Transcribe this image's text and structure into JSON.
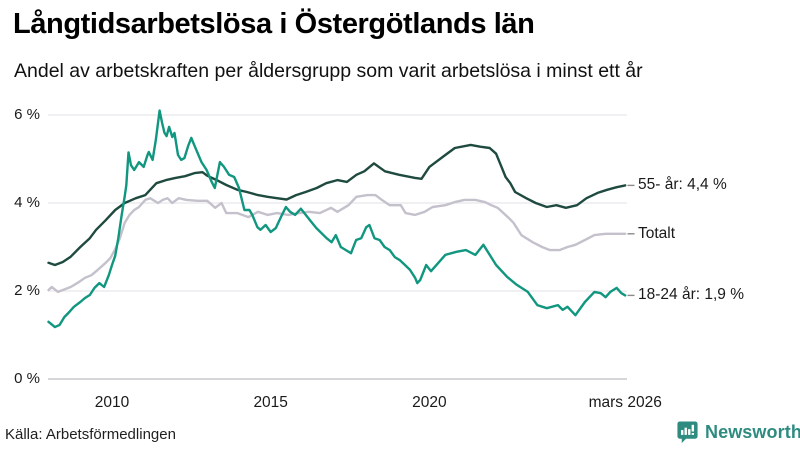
{
  "chart_data": {
    "type": "line",
    "title": "Långtidsarbetslösa i Östergötlands län",
    "subtitle": "Andel av arbetskraften per åldersgrupp som varit arbetslösa i minst ett år",
    "source": "Källa: Arbetsförmedlingen",
    "xlabel": "",
    "ylabel": "",
    "ylim": [
      0,
      6.5
    ],
    "xlim": [
      2008.0,
      2026.25
    ],
    "grid": true,
    "legend_position": "line-end-labels-right",
    "colors": {
      "grid_line": "#e7e6ec",
      "zero_line": "#c9c8ce",
      "label_dash": "#8b8b8b",
      "text": "#1a1a1a"
    },
    "y_ticks": [
      {
        "label": "0 %",
        "value": 0
      },
      {
        "label": "2 %",
        "value": 2
      },
      {
        "label": "4 %",
        "value": 4
      },
      {
        "label": "6 %",
        "value": 6
      }
    ],
    "x_ticks": [
      {
        "label": "2010",
        "year": 2010
      },
      {
        "label": "2015",
        "year": 2015
      },
      {
        "label": "2020",
        "year": 2020
      },
      {
        "label": "mars 2026",
        "year": 2026.17
      }
    ],
    "series": [
      {
        "name": "55- år",
        "label": "55- år: 4,4 %",
        "last_value": "4,4 %",
        "color": "#1f4a40",
        "z": 2,
        "points": [
          [
            2008.0,
            2.64
          ],
          [
            2008.2,
            2.59
          ],
          [
            2008.45,
            2.66
          ],
          [
            2008.7,
            2.78
          ],
          [
            2009.0,
            3.0
          ],
          [
            2009.3,
            3.2
          ],
          [
            2009.5,
            3.39
          ],
          [
            2009.8,
            3.61
          ],
          [
            2010.1,
            3.84
          ],
          [
            2010.4,
            4.0
          ],
          [
            2010.75,
            4.11
          ],
          [
            2011.05,
            4.18
          ],
          [
            2011.4,
            4.45
          ],
          [
            2011.7,
            4.52
          ],
          [
            2012.0,
            4.57
          ],
          [
            2012.3,
            4.61
          ],
          [
            2012.6,
            4.68
          ],
          [
            2012.85,
            4.7
          ],
          [
            2013.0,
            4.62
          ],
          [
            2013.3,
            4.52
          ],
          [
            2013.6,
            4.41
          ],
          [
            2013.95,
            4.3
          ],
          [
            2014.25,
            4.25
          ],
          [
            2014.6,
            4.18
          ],
          [
            2014.9,
            4.14
          ],
          [
            2015.2,
            4.11
          ],
          [
            2015.5,
            4.08
          ],
          [
            2015.8,
            4.18
          ],
          [
            2016.1,
            4.25
          ],
          [
            2016.45,
            4.34
          ],
          [
            2016.75,
            4.45
          ],
          [
            2017.1,
            4.52
          ],
          [
            2017.4,
            4.48
          ],
          [
            2017.7,
            4.64
          ],
          [
            2017.95,
            4.72
          ],
          [
            2018.25,
            4.9
          ],
          [
            2018.6,
            4.72
          ],
          [
            2019.05,
            4.64
          ],
          [
            2019.55,
            4.57
          ],
          [
            2019.75,
            4.55
          ],
          [
            2020.0,
            4.82
          ],
          [
            2020.5,
            5.09
          ],
          [
            2020.8,
            5.25
          ],
          [
            2021.3,
            5.32
          ],
          [
            2021.6,
            5.28
          ],
          [
            2021.9,
            5.25
          ],
          [
            2022.1,
            5.12
          ],
          [
            2022.25,
            4.86
          ],
          [
            2022.4,
            4.59
          ],
          [
            2022.55,
            4.45
          ],
          [
            2022.7,
            4.25
          ],
          [
            2023.05,
            4.11
          ],
          [
            2023.35,
            4.0
          ],
          [
            2023.7,
            3.91
          ],
          [
            2024.0,
            3.95
          ],
          [
            2024.3,
            3.89
          ],
          [
            2024.65,
            3.95
          ],
          [
            2024.95,
            4.11
          ],
          [
            2025.3,
            4.23
          ],
          [
            2025.6,
            4.3
          ],
          [
            2025.9,
            4.36
          ],
          [
            2026.17,
            4.4
          ]
        ]
      },
      {
        "name": "Totalt",
        "label": "Totalt",
        "last_value": "3,3 %",
        "color": "#c4c1cc",
        "z": 1,
        "points": [
          [
            2008.0,
            2.02
          ],
          [
            2008.1,
            2.09
          ],
          [
            2008.3,
            1.98
          ],
          [
            2008.7,
            2.09
          ],
          [
            2008.95,
            2.2
          ],
          [
            2009.15,
            2.3
          ],
          [
            2009.35,
            2.36
          ],
          [
            2009.55,
            2.48
          ],
          [
            2009.8,
            2.64
          ],
          [
            2009.95,
            2.75
          ],
          [
            2010.1,
            2.95
          ],
          [
            2010.25,
            3.2
          ],
          [
            2010.4,
            3.55
          ],
          [
            2010.55,
            3.73
          ],
          [
            2010.7,
            3.84
          ],
          [
            2010.85,
            3.91
          ],
          [
            2011.05,
            4.07
          ],
          [
            2011.2,
            4.11
          ],
          [
            2011.45,
            4.0
          ],
          [
            2011.6,
            4.07
          ],
          [
            2011.75,
            4.11
          ],
          [
            2011.9,
            4.0
          ],
          [
            2012.1,
            4.11
          ],
          [
            2012.35,
            4.07
          ],
          [
            2012.7,
            4.05
          ],
          [
            2013.0,
            4.05
          ],
          [
            2013.25,
            3.89
          ],
          [
            2013.45,
            4.0
          ],
          [
            2013.6,
            3.77
          ],
          [
            2013.95,
            3.77
          ],
          [
            2014.3,
            3.68
          ],
          [
            2014.6,
            3.8
          ],
          [
            2014.9,
            3.73
          ],
          [
            2015.2,
            3.77
          ],
          [
            2015.55,
            3.73
          ],
          [
            2015.9,
            3.77
          ],
          [
            2016.2,
            3.8
          ],
          [
            2016.55,
            3.77
          ],
          [
            2016.9,
            3.89
          ],
          [
            2017.1,
            3.8
          ],
          [
            2017.45,
            3.95
          ],
          [
            2017.7,
            4.14
          ],
          [
            2018.05,
            4.18
          ],
          [
            2018.3,
            4.18
          ],
          [
            2018.5,
            4.07
          ],
          [
            2018.75,
            3.95
          ],
          [
            2019.1,
            3.95
          ],
          [
            2019.25,
            3.77
          ],
          [
            2019.55,
            3.73
          ],
          [
            2019.85,
            3.8
          ],
          [
            2020.1,
            3.91
          ],
          [
            2020.5,
            3.95
          ],
          [
            2020.8,
            4.02
          ],
          [
            2021.1,
            4.07
          ],
          [
            2021.45,
            4.07
          ],
          [
            2021.75,
            4.02
          ],
          [
            2021.95,
            3.95
          ],
          [
            2022.15,
            3.89
          ],
          [
            2022.5,
            3.66
          ],
          [
            2022.65,
            3.55
          ],
          [
            2022.9,
            3.27
          ],
          [
            2023.25,
            3.11
          ],
          [
            2023.55,
            3.0
          ],
          [
            2023.8,
            2.93
          ],
          [
            2024.1,
            2.93
          ],
          [
            2024.35,
            3.0
          ],
          [
            2024.6,
            3.05
          ],
          [
            2024.9,
            3.16
          ],
          [
            2025.2,
            3.27
          ],
          [
            2025.55,
            3.3
          ],
          [
            2026.17,
            3.3
          ]
        ]
      },
      {
        "name": "18-24 år",
        "label": "18-24 år: 1,9 %",
        "last_value": "1,9 %",
        "color": "#11967f",
        "z": 3,
        "points": [
          [
            2008.0,
            1.3
          ],
          [
            2008.2,
            1.18
          ],
          [
            2008.35,
            1.23
          ],
          [
            2008.5,
            1.41
          ],
          [
            2008.65,
            1.52
          ],
          [
            2008.8,
            1.64
          ],
          [
            2009.0,
            1.75
          ],
          [
            2009.15,
            1.84
          ],
          [
            2009.3,
            1.91
          ],
          [
            2009.45,
            2.07
          ],
          [
            2009.6,
            2.18
          ],
          [
            2009.75,
            2.09
          ],
          [
            2009.9,
            2.36
          ],
          [
            2010.0,
            2.59
          ],
          [
            2010.1,
            2.8
          ],
          [
            2010.2,
            3.2
          ],
          [
            2010.3,
            3.7
          ],
          [
            2010.4,
            4.15
          ],
          [
            2010.45,
            4.4
          ],
          [
            2010.52,
            5.15
          ],
          [
            2010.6,
            4.86
          ],
          [
            2010.7,
            4.75
          ],
          [
            2010.85,
            4.93
          ],
          [
            2011.0,
            4.82
          ],
          [
            2011.12,
            5.09
          ],
          [
            2011.16,
            5.16
          ],
          [
            2011.28,
            4.98
          ],
          [
            2011.38,
            5.43
          ],
          [
            2011.5,
            6.1
          ],
          [
            2011.58,
            5.82
          ],
          [
            2011.65,
            5.6
          ],
          [
            2011.72,
            5.52
          ],
          [
            2011.8,
            5.73
          ],
          [
            2011.9,
            5.5
          ],
          [
            2011.97,
            5.59
          ],
          [
            2012.08,
            5.09
          ],
          [
            2012.18,
            4.98
          ],
          [
            2012.28,
            5.02
          ],
          [
            2012.4,
            5.3
          ],
          [
            2012.5,
            5.48
          ],
          [
            2012.66,
            5.2
          ],
          [
            2012.82,
            4.93
          ],
          [
            2012.98,
            4.75
          ],
          [
            2013.14,
            4.48
          ],
          [
            2013.24,
            4.34
          ],
          [
            2013.4,
            4.93
          ],
          [
            2013.53,
            4.82
          ],
          [
            2013.69,
            4.64
          ],
          [
            2013.85,
            4.59
          ],
          [
            2014.0,
            4.34
          ],
          [
            2014.17,
            3.84
          ],
          [
            2014.33,
            3.84
          ],
          [
            2014.42,
            3.73
          ],
          [
            2014.58,
            3.45
          ],
          [
            2014.68,
            3.39
          ],
          [
            2014.84,
            3.5
          ],
          [
            2015.0,
            3.34
          ],
          [
            2015.16,
            3.43
          ],
          [
            2015.32,
            3.68
          ],
          [
            2015.48,
            3.91
          ],
          [
            2015.61,
            3.8
          ],
          [
            2015.77,
            3.73
          ],
          [
            2015.95,
            3.87
          ],
          [
            2016.28,
            3.57
          ],
          [
            2016.44,
            3.43
          ],
          [
            2016.76,
            3.2
          ],
          [
            2016.92,
            3.11
          ],
          [
            2017.05,
            3.27
          ],
          [
            2017.21,
            3.0
          ],
          [
            2017.37,
            2.93
          ],
          [
            2017.53,
            2.86
          ],
          [
            2017.69,
            3.16
          ],
          [
            2017.85,
            3.2
          ],
          [
            2018.01,
            3.45
          ],
          [
            2018.11,
            3.5
          ],
          [
            2018.27,
            3.2
          ],
          [
            2018.43,
            3.16
          ],
          [
            2018.59,
            3.0
          ],
          [
            2018.75,
            2.93
          ],
          [
            2018.91,
            2.77
          ],
          [
            2019.07,
            2.7
          ],
          [
            2019.23,
            2.59
          ],
          [
            2019.39,
            2.48
          ],
          [
            2019.55,
            2.3
          ],
          [
            2019.62,
            2.18
          ],
          [
            2019.71,
            2.25
          ],
          [
            2019.9,
            2.59
          ],
          [
            2020.05,
            2.45
          ],
          [
            2020.5,
            2.82
          ],
          [
            2020.85,
            2.89
          ],
          [
            2021.15,
            2.93
          ],
          [
            2021.45,
            2.82
          ],
          [
            2021.7,
            3.05
          ],
          [
            2022.1,
            2.59
          ],
          [
            2022.45,
            2.32
          ],
          [
            2022.75,
            2.14
          ],
          [
            2023.1,
            1.98
          ],
          [
            2023.4,
            1.68
          ],
          [
            2023.7,
            1.61
          ],
          [
            2024.05,
            1.68
          ],
          [
            2024.2,
            1.57
          ],
          [
            2024.35,
            1.64
          ],
          [
            2024.6,
            1.45
          ],
          [
            2024.9,
            1.75
          ],
          [
            2025.2,
            1.98
          ],
          [
            2025.4,
            1.95
          ],
          [
            2025.55,
            1.86
          ],
          [
            2025.7,
            1.98
          ],
          [
            2025.9,
            2.07
          ],
          [
            2026.05,
            1.95
          ],
          [
            2026.17,
            1.9
          ]
        ]
      }
    ]
  },
  "branding": {
    "brand": "Newsworthy",
    "brand_color": "#2e8b80",
    "icon": "newsworthy-speech-bubble-chart-icon"
  }
}
